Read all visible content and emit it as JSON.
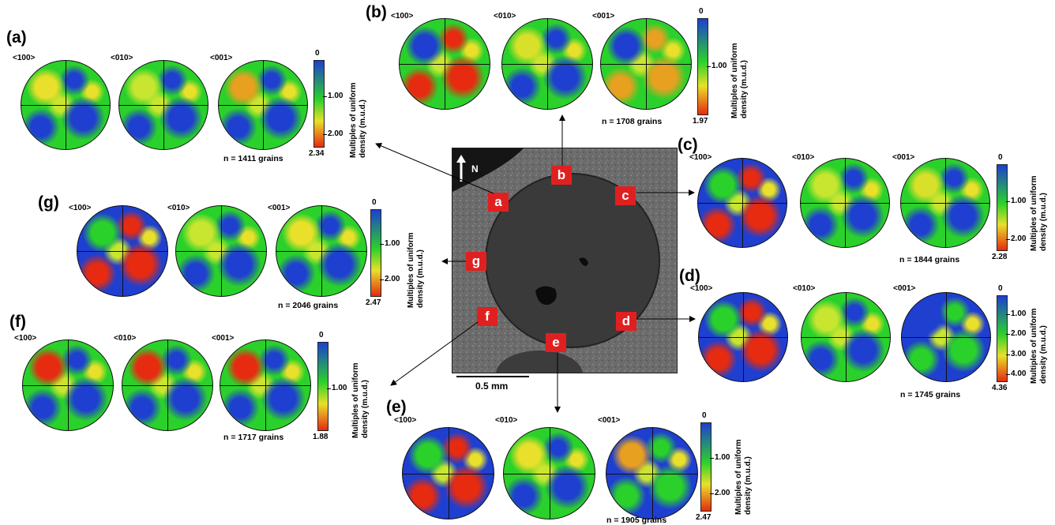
{
  "pole_labels": [
    "<100>",
    "<010>",
    "<001>"
  ],
  "colorbar_title": [
    "Multiples of uniform",
    "density (m.u.d.)"
  ],
  "colorbar_min": "0",
  "center": {
    "north_label": "N",
    "scale_label": "0.5 mm",
    "markers": [
      "a",
      "b",
      "c",
      "d",
      "e",
      "f",
      "g"
    ]
  },
  "panels": [
    {
      "id": "a",
      "label": "(a)",
      "n": "n = 1411 grains",
      "max": "2.34",
      "ticks": [
        "1.00",
        "2.00"
      ]
    },
    {
      "id": "b",
      "label": "(b)",
      "n": "n = 1708 grains",
      "max": "1.97",
      "ticks": [
        "1.00"
      ]
    },
    {
      "id": "c",
      "label": "(c)",
      "n": "n = 1844 grains",
      "max": "2.28",
      "ticks": [
        "1.00",
        "2.00"
      ]
    },
    {
      "id": "d",
      "label": "(d)",
      "n": "n = 1745 grains",
      "max": "4.36",
      "ticks": [
        "1.00",
        "2.00",
        "3.00",
        "4.00"
      ]
    },
    {
      "id": "e",
      "label": "(e)",
      "n": "n = 1905 grains",
      "max": "2.47",
      "ticks": [
        "1.00",
        "2.00"
      ]
    },
    {
      "id": "f",
      "label": "(f)",
      "n": "n = 1717 grains",
      "max": "1.88",
      "ticks": [
        "1.00"
      ]
    },
    {
      "id": "g",
      "label": "(g)",
      "n": "n = 2046 grains",
      "max": "2.47",
      "ticks": [
        "1.00",
        "2.00"
      ]
    }
  ],
  "colors": {
    "marker": "#e02020",
    "low": "#1e3fd0",
    "mid": "#2bd12b",
    "high": "#e62b10"
  }
}
